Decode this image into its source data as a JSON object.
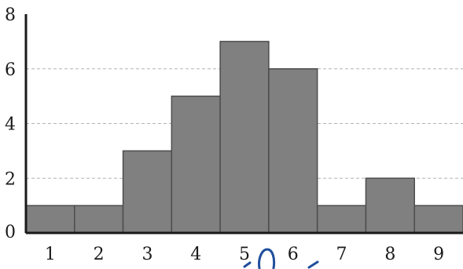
{
  "chart_data": {
    "type": "bar",
    "categories": [
      "1",
      "2",
      "3",
      "4",
      "5",
      "6",
      "7",
      "8",
      "9"
    ],
    "values": [
      1,
      1,
      3,
      5,
      7,
      6,
      1,
      2,
      1
    ],
    "ylim": [
      0,
      8
    ],
    "yticks": [
      "0",
      "2",
      "4",
      "6",
      "8"
    ],
    "grid": true,
    "bar_color": "#808080",
    "bar_edge_color": "#4d4d4d",
    "grid_color": "#b3b3b3"
  },
  "annotations": {
    "handwriting_color": "#1f4e9c"
  }
}
